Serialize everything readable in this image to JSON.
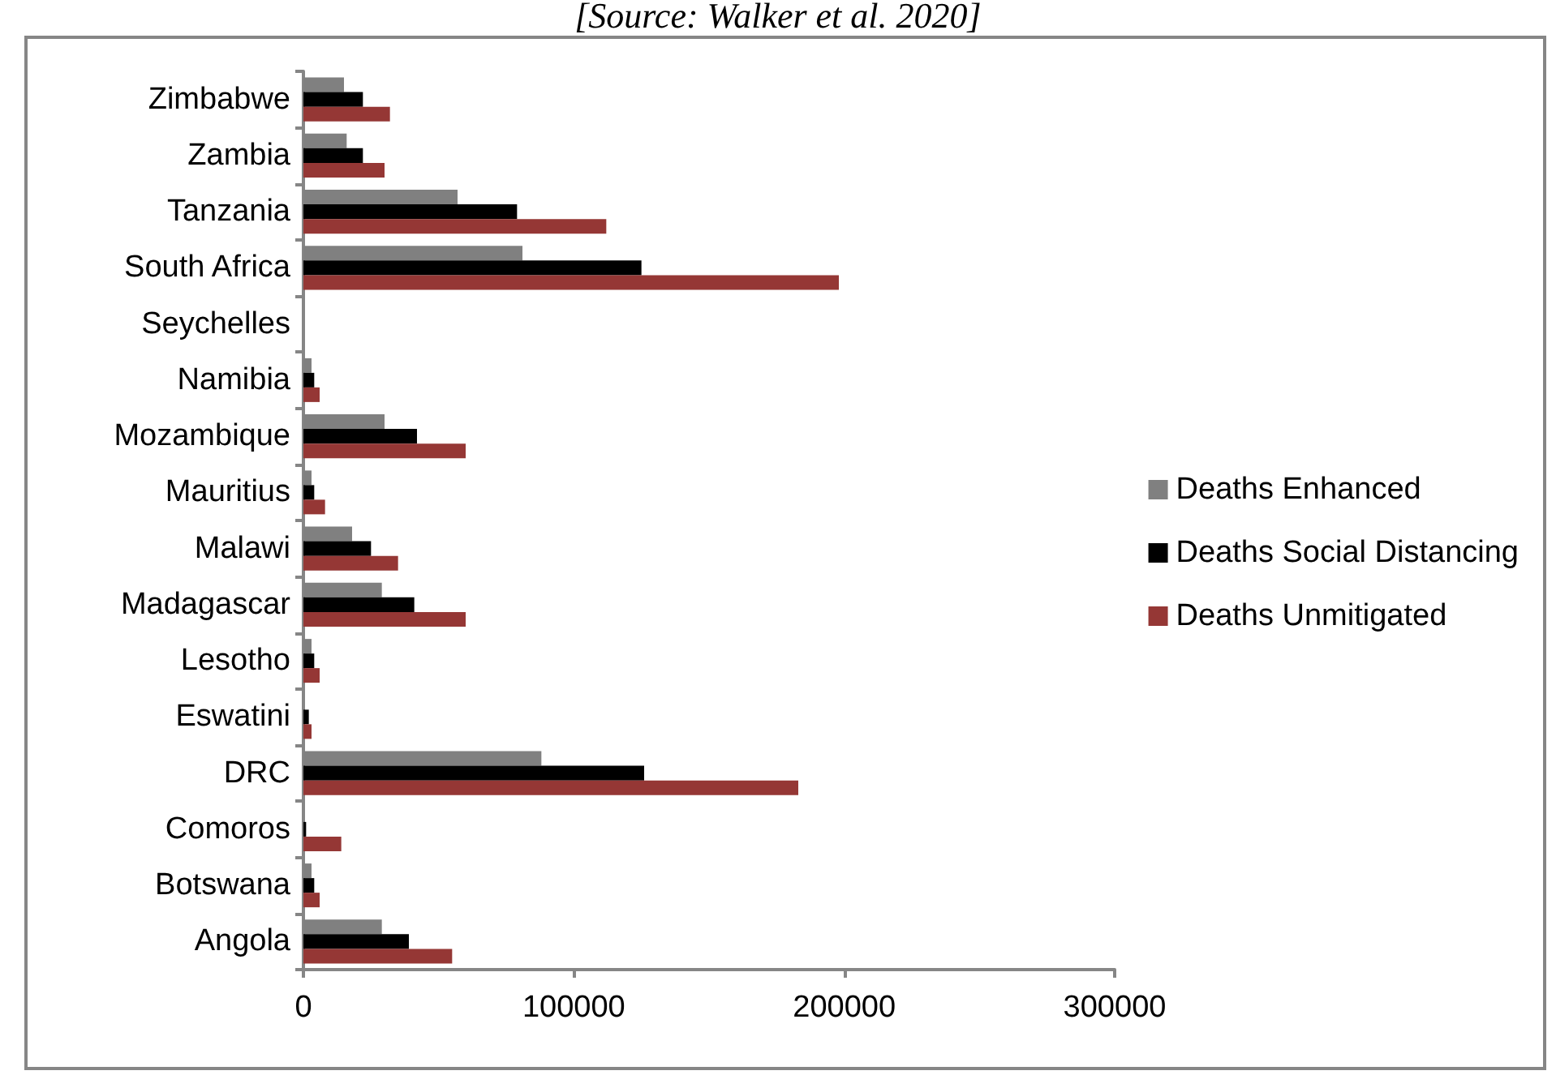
{
  "chart_data": {
    "type": "bar",
    "orientation": "horizontal",
    "annotations": [
      "[Source: Walker et al. 2020]"
    ],
    "categories": [
      "Zimbabwe",
      "Zambia",
      "Tanzania",
      "South Africa",
      "Seychelles",
      "Namibia",
      "Mozambique",
      "Mauritius",
      "Malawi",
      "Madagascar",
      "Lesotho",
      "Eswatini",
      "DRC",
      "Comoros",
      "Botswana",
      "Angola"
    ],
    "series": [
      {
        "name": "Deaths Enhanced",
        "color": "#808080",
        "values": [
          15000,
          16000,
          57000,
          81000,
          0,
          3000,
          30000,
          3000,
          18000,
          29000,
          3000,
          null,
          88000,
          null,
          3000,
          29000
        ]
      },
      {
        "name": "Deaths Social Distancing",
        "color": "#000000",
        "values": [
          22000,
          22000,
          79000,
          125000,
          0,
          4000,
          42000,
          4000,
          25000,
          41000,
          4000,
          2000,
          126000,
          1000,
          4000,
          39000
        ]
      },
      {
        "name": "Deaths Unmitigated",
        "color": "#953735",
        "values": [
          32000,
          30000,
          112000,
          198000,
          0,
          6000,
          60000,
          8000,
          35000,
          60000,
          6000,
          3000,
          183000,
          14000,
          6000,
          55000
        ]
      }
    ],
    "xlim": [
      0,
      300000
    ],
    "xticks": [
      0,
      100000,
      200000,
      300000
    ],
    "grid": false,
    "legend": "right"
  }
}
